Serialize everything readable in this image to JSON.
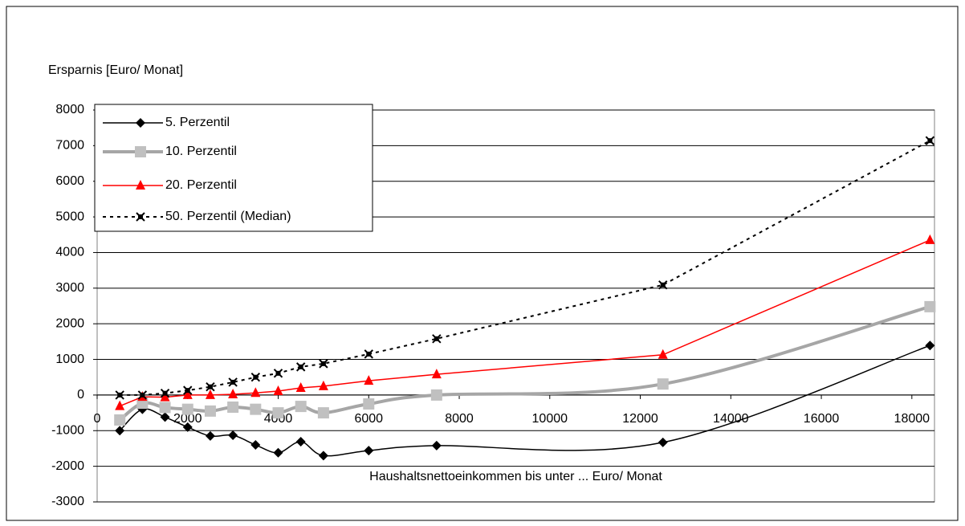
{
  "chart_data": {
    "type": "line",
    "y_label": "Ersparnis [Euro/ Monat]",
    "x_label": "Haushaltsnettoeinkommen bis unter ... Euro/ Monat",
    "x": [
      500,
      1000,
      1500,
      2000,
      2500,
      3000,
      3500,
      4000,
      4500,
      5000,
      6000,
      7500,
      12500,
      18400
    ],
    "series": [
      {
        "name": "5. Perzentil",
        "color": "#000000",
        "marker": "diamond",
        "smooth": true,
        "dash": false,
        "values": [
          -1000,
          -400,
          -620,
          -900,
          -1150,
          -1130,
          -1400,
          -1620,
          -1310,
          -1700,
          -1560,
          -1420,
          -1330,
          1390
        ]
      },
      {
        "name": "10. Perzentil",
        "color": "#a6a6a6",
        "marker": "square",
        "smooth": true,
        "dash": false,
        "values": [
          -700,
          -230,
          -350,
          -400,
          -450,
          -340,
          -400,
          -500,
          -320,
          -500,
          -250,
          0,
          310,
          2480
        ]
      },
      {
        "name": "20. Perzentil",
        "color": "#ff0000",
        "marker": "triangle",
        "smooth": false,
        "dash": false,
        "values": [
          -310,
          -50,
          -60,
          0,
          0,
          20,
          60,
          110,
          200,
          250,
          400,
          580,
          1130,
          4350
        ]
      },
      {
        "name": "50. Perzentil (Median)",
        "color": "#000000",
        "marker": "star",
        "smooth": false,
        "dash": true,
        "values": [
          0,
          0,
          50,
          130,
          230,
          360,
          500,
          610,
          790,
          880,
          1150,
          1580,
          3090,
          7140
        ]
      }
    ],
    "xlim": [
      0,
      18500
    ],
    "xticks": [
      0,
      2000,
      4000,
      6000,
      8000,
      10000,
      12000,
      14000,
      16000,
      18000
    ],
    "ylim": [
      -3000,
      8000
    ],
    "yticks": [
      -3000,
      -2000,
      -1000,
      0,
      1000,
      2000,
      3000,
      4000,
      5000,
      6000,
      7000,
      8000
    ],
    "grid": true,
    "legend": "upper left"
  }
}
